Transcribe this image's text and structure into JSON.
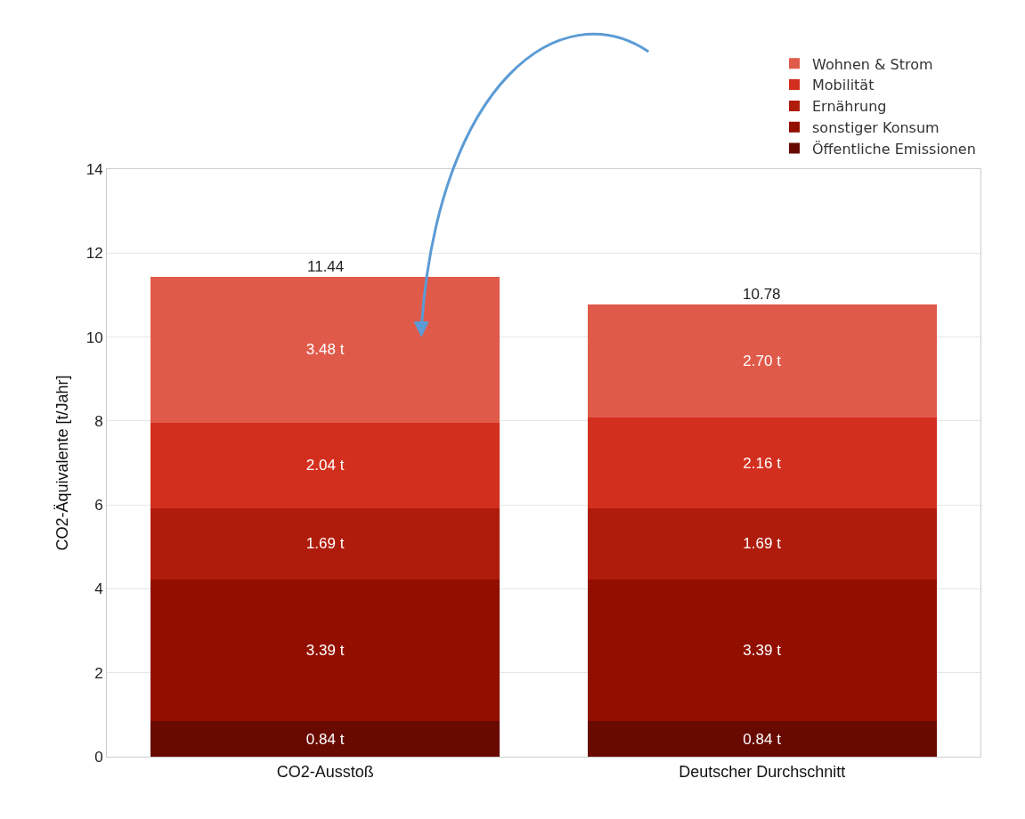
{
  "chart_data": {
    "type": "bar",
    "stacked": true,
    "ylabel": "CO2-Äquivalente [t/Jahr]",
    "categories": [
      "CO2-Ausstoß",
      "Deutscher Durchschnitt"
    ],
    "series": [
      {
        "name": "Öffentliche Emissionen",
        "color": "#680a00",
        "values": [
          0.84,
          0.84
        ],
        "value_labels": [
          "0.84 t",
          "0.84 t"
        ]
      },
      {
        "name": "sonstiger Konsum",
        "color": "#920f00",
        "values": [
          3.39,
          3.39
        ],
        "value_labels": [
          "3.39 t",
          "3.39 t"
        ]
      },
      {
        "name": "Ernährung",
        "color": "#b01c0c",
        "values": [
          1.69,
          1.69
        ],
        "value_labels": [
          "1.69 t",
          "1.69 t"
        ]
      },
      {
        "name": "Mobilität",
        "color": "#d32f1e",
        "values": [
          2.04,
          2.16
        ],
        "value_labels": [
          "2.04 t",
          "2.16 t"
        ]
      },
      {
        "name": "Wohnen & Strom",
        "color": "#e05a4a",
        "values": [
          3.48,
          2.7
        ],
        "value_labels": [
          "3.48 t",
          "2.70 t"
        ]
      }
    ],
    "totals": [
      "11.44",
      "10.78"
    ],
    "ylim": [
      0,
      14
    ],
    "yticks": [
      0,
      2,
      4,
      6,
      8,
      10,
      12,
      14
    ],
    "grid": "y",
    "legend": "top right"
  }
}
